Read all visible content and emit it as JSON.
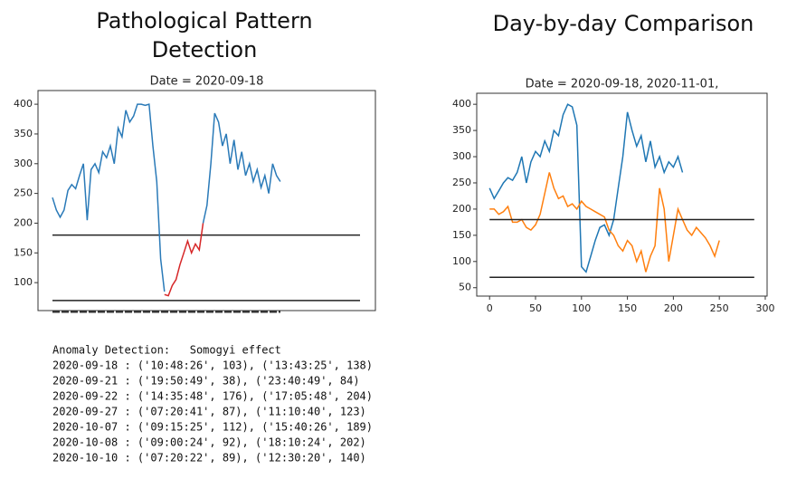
{
  "headings": [
    [
      "Pathological Pattern",
      "Detection"
    ],
    [
      "Day-by-day Comparison"
    ]
  ],
  "chart_data": [
    {
      "type": "line",
      "title": "Date = 2020-09-18",
      "ylim": [
        53,
        423
      ],
      "yticks": [
        100,
        150,
        200,
        250,
        300,
        350,
        400
      ],
      "hlines": [
        180,
        70
      ],
      "series": [
        {
          "color": "#2a7ab8",
          "values": [
            243,
            222,
            210,
            222,
            255,
            265,
            258,
            280,
            300,
            205,
            290,
            300,
            285,
            320,
            310,
            330,
            300,
            360,
            345,
            390,
            370,
            380,
            400,
            400,
            398,
            400,
            330,
            270,
            140,
            85,
            null,
            null,
            null,
            null,
            null,
            null,
            null,
            null,
            null,
            200,
            230,
            300,
            385,
            370,
            330,
            350,
            300,
            340,
            290,
            320,
            280,
            300,
            270,
            290,
            260,
            280,
            250,
            300,
            280,
            270
          ]
        },
        {
          "color": "#d62728",
          "values": [
            null,
            null,
            null,
            null,
            null,
            null,
            null,
            null,
            null,
            null,
            null,
            null,
            null,
            null,
            null,
            null,
            null,
            null,
            null,
            null,
            null,
            null,
            null,
            null,
            null,
            null,
            null,
            null,
            null,
            80,
            78,
            95,
            105,
            130,
            150,
            170,
            150,
            165,
            155,
            200,
            null,
            null,
            null,
            null,
            null,
            null,
            null,
            null,
            null,
            null,
            null,
            null,
            null,
            null,
            null,
            null,
            null,
            null,
            null,
            null
          ]
        }
      ]
    },
    {
      "type": "line",
      "title": "Date = 2020-09-18, 2020-11-01,",
      "xlim": [
        -14,
        302
      ],
      "ylim": [
        34,
        421
      ],
      "xticks": [
        0,
        50,
        100,
        150,
        200,
        250,
        300
      ],
      "yticks": [
        50,
        100,
        150,
        200,
        250,
        300,
        350,
        400
      ],
      "series": [
        {
          "color": "#1f77b4",
          "x": [
            0,
            5,
            10,
            15,
            20,
            25,
            30,
            35,
            40,
            45,
            50,
            55,
            60,
            65,
            70,
            75,
            80,
            85,
            90,
            95,
            100,
            105,
            110,
            115,
            120,
            125,
            130,
            135,
            140,
            145,
            150,
            155,
            160,
            165,
            170,
            175,
            180,
            185,
            190,
            195,
            200,
            205,
            210
          ],
          "values": [
            240,
            220,
            235,
            250,
            260,
            255,
            270,
            300,
            250,
            290,
            310,
            300,
            330,
            310,
            350,
            340,
            380,
            400,
            395,
            360,
            90,
            80,
            110,
            140,
            165,
            170,
            150,
            180,
            240,
            300,
            385,
            350,
            320,
            340,
            290,
            330,
            280,
            300,
            270,
            290,
            280,
            300,
            270
          ]
        },
        {
          "color": "#ff7f0e",
          "x": [
            0,
            5,
            10,
            15,
            20,
            25,
            30,
            35,
            40,
            45,
            50,
            55,
            60,
            65,
            70,
            75,
            80,
            85,
            90,
            95,
            100,
            105,
            110,
            115,
            120,
            125,
            130,
            135,
            140,
            145,
            150,
            155,
            160,
            165,
            170,
            175,
            180,
            185,
            190,
            195,
            200,
            205,
            210,
            215,
            220,
            225,
            230,
            235,
            240,
            245,
            250
          ],
          "values": [
            200,
            200,
            190,
            195,
            205,
            175,
            175,
            180,
            165,
            160,
            170,
            190,
            230,
            270,
            240,
            220,
            225,
            205,
            210,
            200,
            215,
            205,
            200,
            195,
            190,
            185,
            160,
            150,
            130,
            120,
            140,
            130,
            100,
            120,
            80,
            110,
            130,
            240,
            200,
            100,
            150,
            200,
            180,
            160,
            150,
            165,
            155,
            145,
            130,
            110,
            140
          ]
        },
        {
          "color": "#222222",
          "x": [
            0,
            288
          ],
          "values": [
            180,
            180
          ]
        },
        {
          "color": "#222222",
          "x": [
            0,
            288
          ],
          "values": [
            70,
            70
          ]
        }
      ]
    }
  ],
  "anomaly_report": {
    "header": "Anomaly Detection:   Somogyi effect",
    "lines": [
      "2020-09-18 : ('10:48:26', 103), ('13:43:25', 138)",
      "2020-09-21 : ('19:50:49', 38), ('23:40:49', 84)",
      "2020-09-22 : ('14:35:48', 176), ('17:05:48', 204)",
      "2020-09-27 : ('07:20:41', 87), ('11:10:40', 123)",
      "2020-10-07 : ('09:15:25', 112), ('15:40:26', 189)",
      "2020-10-08 : ('09:00:24', 92), ('18:10:24', 202)",
      "2020-10-10 : ('07:20:22', 89), ('12:30:20', 140)"
    ]
  }
}
